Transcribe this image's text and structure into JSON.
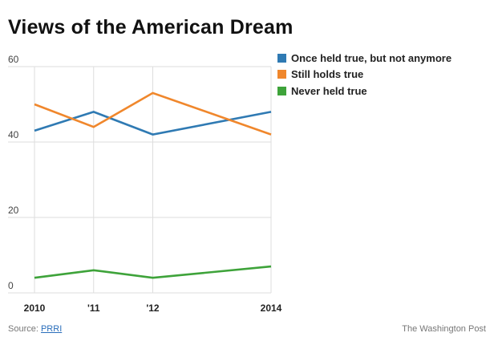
{
  "title": "Views of the American Dream",
  "chart_data": {
    "type": "line",
    "x": [
      "2010",
      "'11",
      "'12",
      "2014"
    ],
    "x_values": [
      2010,
      2011,
      2012,
      2014
    ],
    "xlim": [
      2010,
      2014
    ],
    "ylim": [
      0,
      60
    ],
    "yticks": [
      0,
      20,
      40,
      60
    ],
    "ytick_labels": [
      "0",
      "20",
      "40",
      "60"
    ],
    "grid": "horizontal",
    "legend_position": "top-right",
    "series": [
      {
        "name": "Once held true, but not anymore",
        "color": "#2f7ab3",
        "values": [
          43,
          48,
          42,
          48
        ]
      },
      {
        "name": "Still holds true",
        "color": "#f0872c",
        "values": [
          50,
          44,
          53,
          42
        ]
      },
      {
        "name": "Never held true",
        "color": "#3ea33a",
        "values": [
          4,
          6,
          4,
          7
        ]
      }
    ]
  },
  "footer": {
    "source_prefix": "Source: ",
    "source_link": "PRRI",
    "credit": "The Washington Post"
  }
}
